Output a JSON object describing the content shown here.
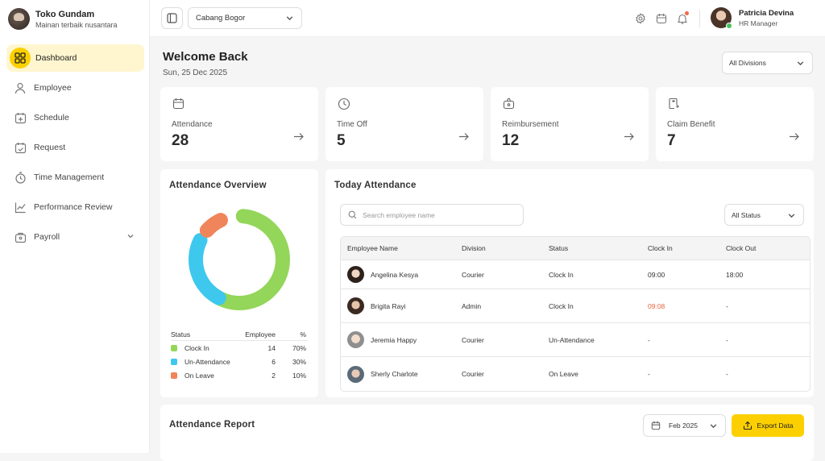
{
  "brand": {
    "name": "Toko Gundam",
    "tagline": "Mainan terbaik nusantara"
  },
  "sidebar": {
    "items": [
      {
        "label": "Dashboard",
        "icon": "grid-icon",
        "active": true
      },
      {
        "label": "Employee",
        "icon": "user-icon"
      },
      {
        "label": "Schedule",
        "icon": "calendar-add-icon"
      },
      {
        "label": "Request",
        "icon": "calendar-check-icon"
      },
      {
        "label": "Time Management",
        "icon": "stopwatch-icon"
      },
      {
        "label": "Performance Review",
        "icon": "chart-line-icon"
      },
      {
        "label": "Payroll",
        "icon": "wallet-icon",
        "expandable": true
      }
    ]
  },
  "topbar": {
    "branch": "Cabang Bogor",
    "user": {
      "name": "Patricia Devina",
      "role": "HR Manager",
      "online": true
    }
  },
  "welcome": {
    "title": "Welcome Back",
    "date": "Sun, 25 Dec 2025"
  },
  "division_filter": "All Divisions",
  "cards": [
    {
      "label": "Attendance",
      "value": "28",
      "icon": "calendar-icon"
    },
    {
      "label": "Time Off",
      "value": "5",
      "icon": "clock-icon"
    },
    {
      "label": "Reimbursement",
      "value": "12",
      "icon": "money-bag-icon"
    },
    {
      "label": "Claim Benefit",
      "value": "7",
      "icon": "claim-icon"
    }
  ],
  "overview": {
    "title": "Attendance Overview",
    "headers": {
      "status": "Status",
      "employee": "Employee",
      "percent": "%"
    },
    "rows": [
      {
        "status": "Clock In",
        "count": "14",
        "percent": "70%",
        "color": "#93d65a",
        "value": 70
      },
      {
        "status": "Un-Attendance",
        "count": "6",
        "percent": "30%",
        "color": "#3ec8ee",
        "value": 30
      },
      {
        "status": "On Leave",
        "count": "2",
        "percent": "10%",
        "color": "#f0845a",
        "value": 10
      }
    ]
  },
  "today": {
    "title": "Today Attendance",
    "search_placeholder": "Search employee name",
    "status_filter": "All Status",
    "columns": [
      "Employee Name",
      "Division",
      "Status",
      "Clock In",
      "Clock Out"
    ],
    "rows": [
      {
        "name": "Angelina Kesya",
        "division": "Courier",
        "status": "Clock In",
        "clock_in": "09:00",
        "clock_out": "18:00",
        "late": false
      },
      {
        "name": "Brigita Rayi",
        "division": "Admin",
        "status": "Clock In",
        "clock_in": "09:08",
        "clock_out": "-",
        "late": true
      },
      {
        "name": "Jeremia Happy",
        "division": "Courier",
        "status": "Un-Attendance",
        "clock_in": "-",
        "clock_out": "-",
        "late": false
      },
      {
        "name": "Sherly Charlote",
        "division": "Courier",
        "status": "On Leave",
        "clock_in": "-",
        "clock_out": "-",
        "late": false
      }
    ]
  },
  "report": {
    "title": "Attendance Report",
    "month": "Feb 2025",
    "export_label": "Export Data"
  },
  "colors": {
    "accent": "#fcd000",
    "late": "#e8633e"
  }
}
